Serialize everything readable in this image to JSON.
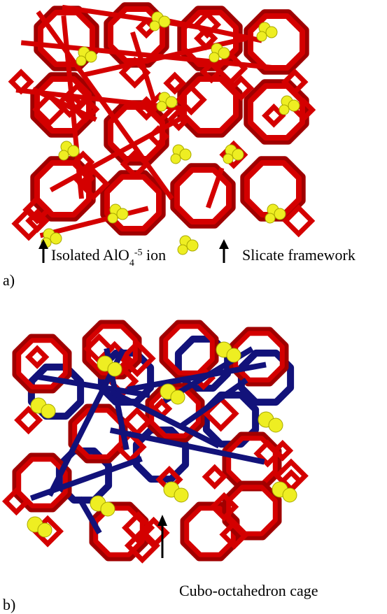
{
  "panels": [
    {
      "label": "a)",
      "annotations": [
        {
          "text_parts": [
            "Isolated AlO",
            "4",
            "-5",
            " ion"
          ]
        },
        {
          "text_parts": [
            "Slicate framework"
          ]
        }
      ]
    },
    {
      "label": "b)",
      "annotations": [
        {
          "text_parts": [
            "Cubo-octahedron cage"
          ]
        }
      ]
    }
  ]
}
